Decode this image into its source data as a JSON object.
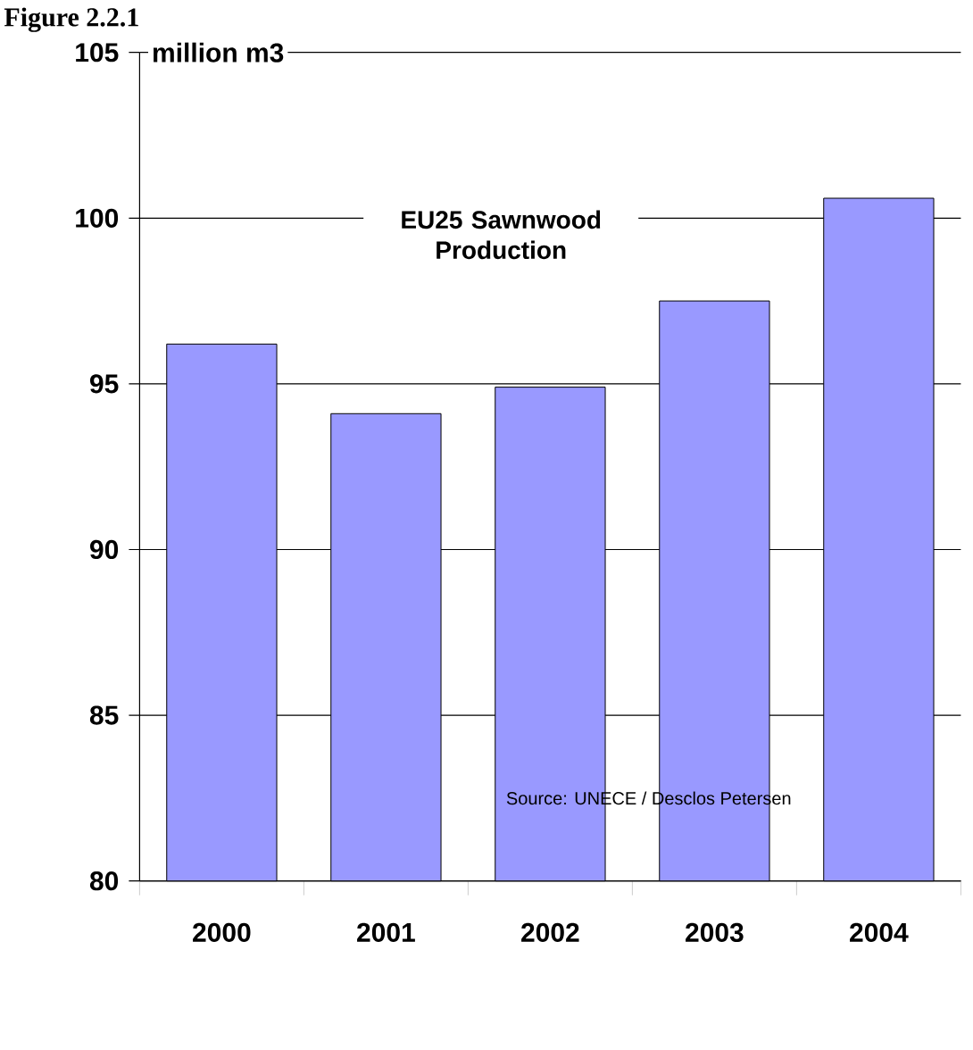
{
  "chart_data": {
    "type": "bar",
    "title": "Figure 2.2.1",
    "subtitle": "EU25 Sawnwood Production",
    "ylabel": "million m3",
    "categories": [
      "2000",
      "2001",
      "2002",
      "2003",
      "2004"
    ],
    "values": [
      96.2,
      94.1,
      94.9,
      97.5,
      100.6
    ],
    "color": "#9999ff",
    "ylim": [
      80,
      105
    ],
    "yticks": [
      80,
      85,
      90,
      95,
      100,
      105
    ],
    "grid": "y",
    "annotations": [
      "Source: UNECE / Desclos Petersen"
    ]
  }
}
